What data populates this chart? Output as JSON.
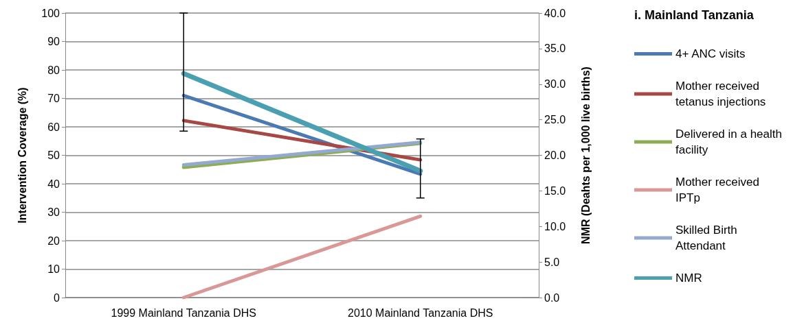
{
  "chart_data": {
    "type": "line",
    "legend_title": "i. Mainland Tanzania",
    "ylabel": "Intervention Coverage (%)",
    "y2label": "NMR (Deahts per 1,000 live births)",
    "categories": [
      "1999 Mainland Tanzania DHS",
      "2010 Mainland Tanzania DHS"
    ],
    "series": [
      {
        "name": "4+ ANC visits",
        "color": "#4a7ab5",
        "values": [
          71.0,
          43.4
        ]
      },
      {
        "name": "Mother received tetanus injections",
        "color": "#a84845",
        "values": [
          62.2,
          48.4
        ]
      },
      {
        "name": "Delivered in a health facility",
        "color": "#8cad52",
        "values": [
          45.8,
          54.2
        ]
      },
      {
        "name": "Mother received IPTp",
        "color": "#d99795",
        "values": [
          0,
          28.6
        ]
      },
      {
        "name": "Skilled Birth Attendant",
        "color": "#94a9cf",
        "values": [
          46.6,
          54.6
        ]
      },
      {
        "name": "NMR",
        "color": "#4aa0b0",
        "axis": "y2",
        "values": [
          31.5,
          17.8
        ],
        "errors": [
          [
            23.4,
            40.0
          ],
          [
            14.0,
            22.3
          ]
        ]
      }
    ],
    "ylim": [
      0,
      100
    ],
    "yticks": [
      0,
      10,
      20,
      30,
      40,
      50,
      60,
      70,
      80,
      90,
      100
    ],
    "y2lim": [
      0,
      40
    ],
    "y2ticks": [
      {
        "value": 0,
        "label": "0.0"
      },
      {
        "value": 5,
        "label": "5.0"
      },
      {
        "value": 10,
        "label": "10.0"
      },
      {
        "value": 15,
        "label": "15.0"
      },
      {
        "value": 20,
        "label": "20.0"
      },
      {
        "value": 25,
        "label": "25.0"
      },
      {
        "value": 30,
        "label": "30.0"
      },
      {
        "value": 35,
        "label": "35.0"
      },
      {
        "value": 40,
        "label": "40.0"
      }
    ],
    "grid": "y",
    "legend": "right",
    "marker": "none",
    "line_style": "solid"
  }
}
